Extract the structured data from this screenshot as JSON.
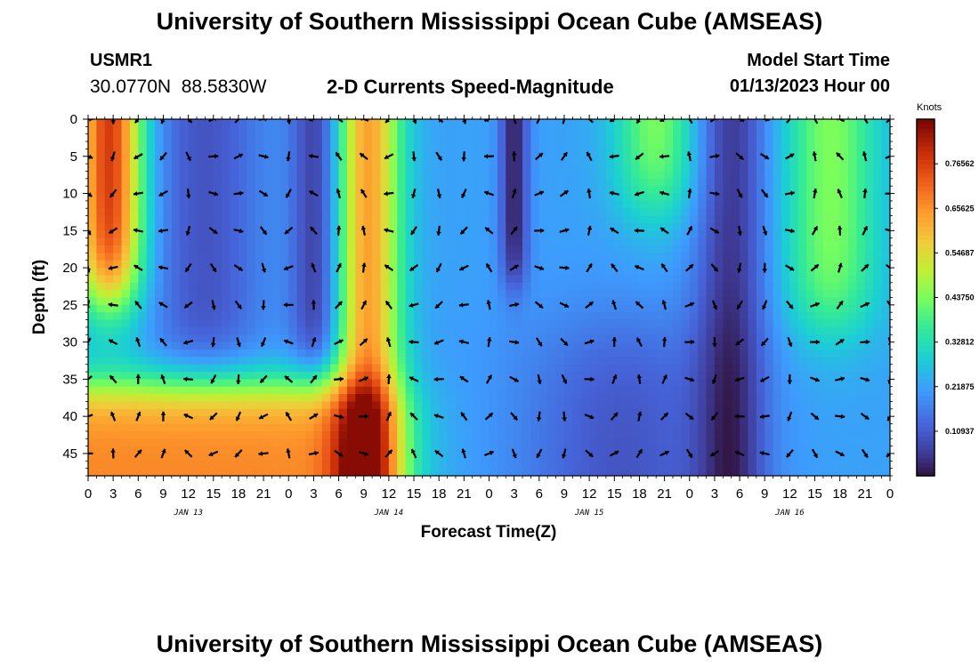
{
  "header": {
    "title": "University of Southern Mississippi Ocean Cube (AMSEAS)",
    "station_id": "USMR1",
    "station_coords": "30.0770N  88.5830W",
    "plot_title": "2-D Currents Speed-Magnitude",
    "model_start_label": "Model Start Time",
    "model_start_value": "01/13/2023 Hour 00",
    "footer_title": "University of Southern Mississippi Ocean Cube (AMSEAS)"
  },
  "chart_data": {
    "type": "heatmap",
    "title": "2-D Currents Speed-Magnitude",
    "xlabel": "Forecast Time(Z)",
    "ylabel": "Depth (ft)",
    "x_range_hours": [
      0,
      96
    ],
    "y_range_ft": [
      0,
      48
    ],
    "x_tick_labels": [
      "0",
      "3",
      "6",
      "9",
      "12",
      "15",
      "18",
      "21",
      "0",
      "3",
      "6",
      "9",
      "12",
      "15",
      "18",
      "21",
      "0",
      "3",
      "6",
      "9",
      "12",
      "15",
      "18",
      "21",
      "0",
      "3",
      "6",
      "9",
      "12",
      "15",
      "18",
      "21",
      "0"
    ],
    "y_ticks": [
      0,
      5,
      10,
      15,
      20,
      25,
      30,
      35,
      40,
      45
    ],
    "date_labels": [
      {
        "label": "JAN 13",
        "hour": 12
      },
      {
        "label": "JAN 14",
        "hour": 36
      },
      {
        "label": "JAN 15",
        "hour": 60
      },
      {
        "label": "JAN 16",
        "hour": 84
      }
    ],
    "colorbar": {
      "unit": "Knots",
      "min": 0.0,
      "max": 0.875,
      "tick_values": [
        0.10937,
        0.21875,
        0.32812,
        0.4375,
        0.54687,
        0.65625,
        0.76562
      ],
      "tick_labels": [
        "0.10937",
        "0.21875",
        "0.32812",
        "0.43750",
        "0.54687",
        "0.65625",
        "0.76562"
      ]
    },
    "arrow_depths_ft": [
      0,
      5,
      10,
      15,
      20,
      25,
      30,
      35,
      40,
      45
    ],
    "arrow_interval_hours": 3
  }
}
